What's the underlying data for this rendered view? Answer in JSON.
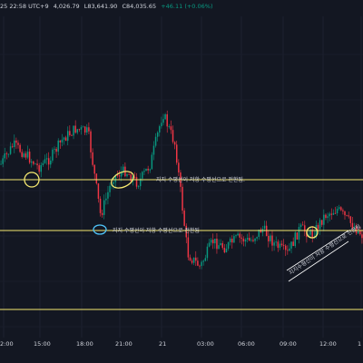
{
  "header": {
    "time_fragment": "25 22:58 UTC+9",
    "v_low": "4,026.79",
    "v_c": "L83,641.90",
    "v_close": "C84,035.65",
    "v_change": "+46.11 (+0.06%)"
  },
  "colors": {
    "background": "#131722",
    "up": "#089981",
    "down": "#f23645",
    "grid": "#1e2230",
    "level_line": "#f5e870",
    "circle_yellow": "#f5e870",
    "circle_blue": "#4fc3f7",
    "wedge_line": "#ffffff"
  },
  "chart_data": {
    "type": "candlestick",
    "title": "",
    "x_tick_labels": [
      "2:00",
      "15:00",
      "18:00",
      "21:00",
      "21",
      "03:00",
      "06:00",
      "09:00",
      "12:00",
      "1"
    ],
    "level_lines": [
      {
        "name": "level-1",
        "label": "지지 수평선이 저항 수평선으로 전환됨."
      },
      {
        "name": "level-2",
        "label": "지지 수평선이 저항 수평선으로 전환됨"
      },
      {
        "name": "level-3",
        "label": ""
      }
    ],
    "annotations": [
      {
        "text": "지지 수평선이 저항 수평선으로 전환됨."
      },
      {
        "text": "지지 수평선이 저항 수평선으로 전환됨"
      },
      {
        "text": "지지수평선이 저항 수평선으로 전환됨"
      }
    ],
    "price_path_shape": [
      0.46,
      0.4,
      0.43,
      0.47,
      0.44,
      0.38,
      0.35,
      0.36,
      0.62,
      0.5,
      0.48,
      0.52,
      0.46,
      0.3,
      0.4,
      0.74,
      0.78,
      0.7,
      0.72,
      0.69,
      0.7,
      0.66,
      0.71,
      0.74,
      0.66,
      0.68,
      0.62,
      0.6,
      0.64,
      0.68
    ]
  }
}
